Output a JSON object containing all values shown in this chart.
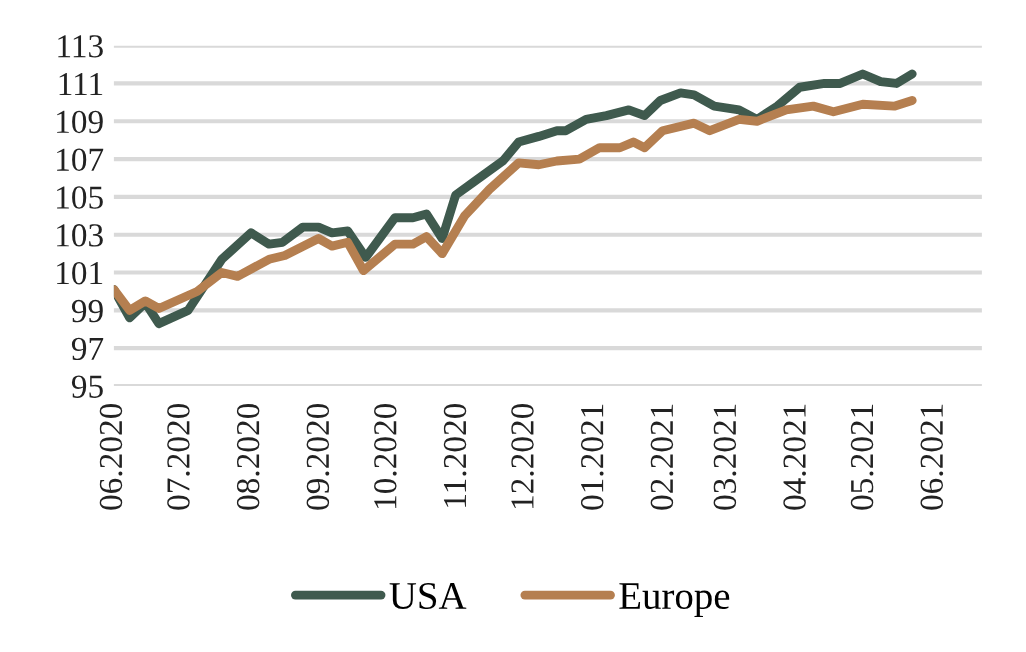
{
  "chart_data": {
    "type": "line",
    "ylim": [
      95,
      113
    ],
    "yticks": [
      95,
      97,
      99,
      101,
      103,
      105,
      107,
      109,
      111,
      113
    ],
    "xlim": [
      "2020-06-01",
      "2021-06-22"
    ],
    "xticks": [
      {
        "value": "2020-06-01",
        "label": "06.2020"
      },
      {
        "value": "2020-07-01",
        "label": "07.2020"
      },
      {
        "value": "2020-08-01",
        "label": "08.2020"
      },
      {
        "value": "2020-09-01",
        "label": "09.2020"
      },
      {
        "value": "2020-10-01",
        "label": "10.2020"
      },
      {
        "value": "2020-11-01",
        "label": "11.2020"
      },
      {
        "value": "2020-12-01",
        "label": "12.2020"
      },
      {
        "value": "2021-01-01",
        "label": "01.2021"
      },
      {
        "value": "2021-02-01",
        "label": "02.2021"
      },
      {
        "value": "2021-03-01",
        "label": "03.2021"
      },
      {
        "value": "2021-04-01",
        "label": "04.2021"
      },
      {
        "value": "2021-05-01",
        "label": "05.2021"
      },
      {
        "value": "2021-06-01",
        "label": "06.2021"
      }
    ],
    "grid": "y",
    "legend": "bottom",
    "marker": "none",
    "line_style": "solid",
    "series": [
      {
        "name": "USA",
        "color": "#3f5a4e",
        "x": [
          "2020-06-01",
          "2020-06-08",
          "2020-06-15",
          "2020-06-21",
          "2020-07-04",
          "2020-07-19",
          "2020-08-01",
          "2020-08-09",
          "2020-08-15",
          "2020-08-24",
          "2020-08-31",
          "2020-09-06",
          "2020-09-13",
          "2020-09-21",
          "2020-10-04",
          "2020-10-12",
          "2020-10-18",
          "2020-10-25",
          "2020-10-31",
          "2020-11-07",
          "2020-11-21",
          "2020-11-28",
          "2020-12-07",
          "2020-12-15",
          "2020-12-19",
          "2020-12-28",
          "2021-01-06",
          "2021-01-16",
          "2021-01-23",
          "2021-01-30",
          "2021-02-08",
          "2021-02-14",
          "2021-02-23",
          "2021-03-06",
          "2021-03-14",
          "2021-03-23",
          "2021-04-02",
          "2021-04-13",
          "2021-04-20",
          "2021-04-30",
          "2021-05-08",
          "2021-05-15",
          "2021-05-22"
        ],
        "values": [
          100.1,
          98.6,
          99.4,
          98.3,
          99.0,
          101.7,
          103.1,
          102.5,
          102.6,
          103.4,
          103.4,
          103.1,
          103.2,
          101.8,
          103.9,
          103.9,
          104.1,
          102.8,
          105.1,
          105.7,
          106.9,
          107.9,
          108.2,
          108.5,
          108.5,
          109.1,
          109.3,
          109.6,
          109.3,
          110.1,
          110.5,
          110.4,
          109.8,
          109.6,
          109.1,
          109.8,
          110.8,
          111.0,
          111.0,
          111.5,
          111.1,
          111.0,
          111.5
        ]
      },
      {
        "name": "Europe",
        "color": "#b57f50",
        "x": [
          "2020-06-01",
          "2020-06-08",
          "2020-06-15",
          "2020-06-21",
          "2020-07-08",
          "2020-07-19",
          "2020-07-26",
          "2020-08-09",
          "2020-08-16",
          "2020-08-31",
          "2020-09-06",
          "2020-09-13",
          "2020-09-20",
          "2020-10-04",
          "2020-10-12",
          "2020-10-18",
          "2020-10-25",
          "2020-11-04",
          "2020-11-15",
          "2020-11-28",
          "2020-12-07",
          "2020-12-15",
          "2020-12-25",
          "2021-01-03",
          "2021-01-12",
          "2021-01-18",
          "2021-01-23",
          "2021-01-31",
          "2021-02-14",
          "2021-02-21",
          "2021-03-06",
          "2021-03-14",
          "2021-03-27",
          "2021-04-08",
          "2021-04-17",
          "2021-04-30",
          "2021-05-14",
          "2021-05-22"
        ],
        "values": [
          100.1,
          99.0,
          99.5,
          99.1,
          100.0,
          101.0,
          100.8,
          101.7,
          101.9,
          102.8,
          102.4,
          102.6,
          101.1,
          102.5,
          102.5,
          102.9,
          102.0,
          104.0,
          105.4,
          106.8,
          106.7,
          106.9,
          107.0,
          107.6,
          107.6,
          107.9,
          107.6,
          108.5,
          108.9,
          108.5,
          109.1,
          109.0,
          109.6,
          109.8,
          109.5,
          109.9,
          109.8,
          110.1
        ]
      }
    ]
  }
}
